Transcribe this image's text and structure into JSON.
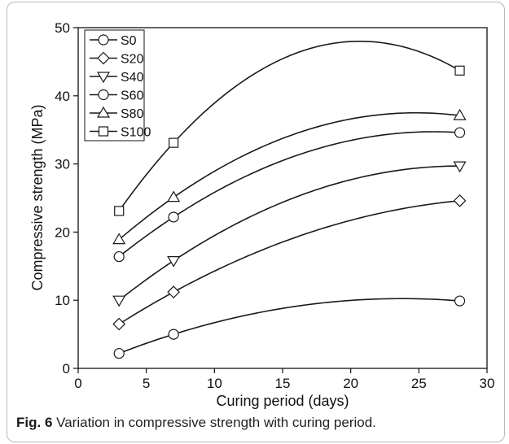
{
  "chart_data": {
    "type": "line",
    "xlabel": "Curing period (days)",
    "ylabel": "Compressive strength (MPa)",
    "xlim": [
      0,
      30
    ],
    "ylim": [
      0,
      50
    ],
    "xticks": [
      0,
      5,
      10,
      15,
      20,
      25,
      30
    ],
    "yticks": [
      0,
      10,
      20,
      30,
      40,
      50
    ],
    "grid": false,
    "legend_position": "top-left",
    "x": [
      3,
      7,
      28
    ],
    "series": [
      {
        "name": "S0",
        "marker": "circle",
        "values": [
          2.2,
          5.0,
          9.9
        ]
      },
      {
        "name": "S20",
        "marker": "diamond",
        "values": [
          6.5,
          11.2,
          24.6
        ]
      },
      {
        "name": "S40",
        "marker": "triangle-down",
        "values": [
          10.0,
          15.8,
          29.7
        ]
      },
      {
        "name": "S60",
        "marker": "hexagon",
        "values": [
          16.4,
          22.2,
          34.6
        ]
      },
      {
        "name": "S80",
        "marker": "triangle-up",
        "values": [
          18.9,
          25.1,
          37.1
        ]
      },
      {
        "name": "S100",
        "marker": "square",
        "values": [
          23.1,
          33.1,
          43.7
        ]
      }
    ],
    "line_color": "#1a1a1a"
  },
  "caption": {
    "label": "Fig. 6",
    "text": "Variation in compressive strength with curing period."
  }
}
